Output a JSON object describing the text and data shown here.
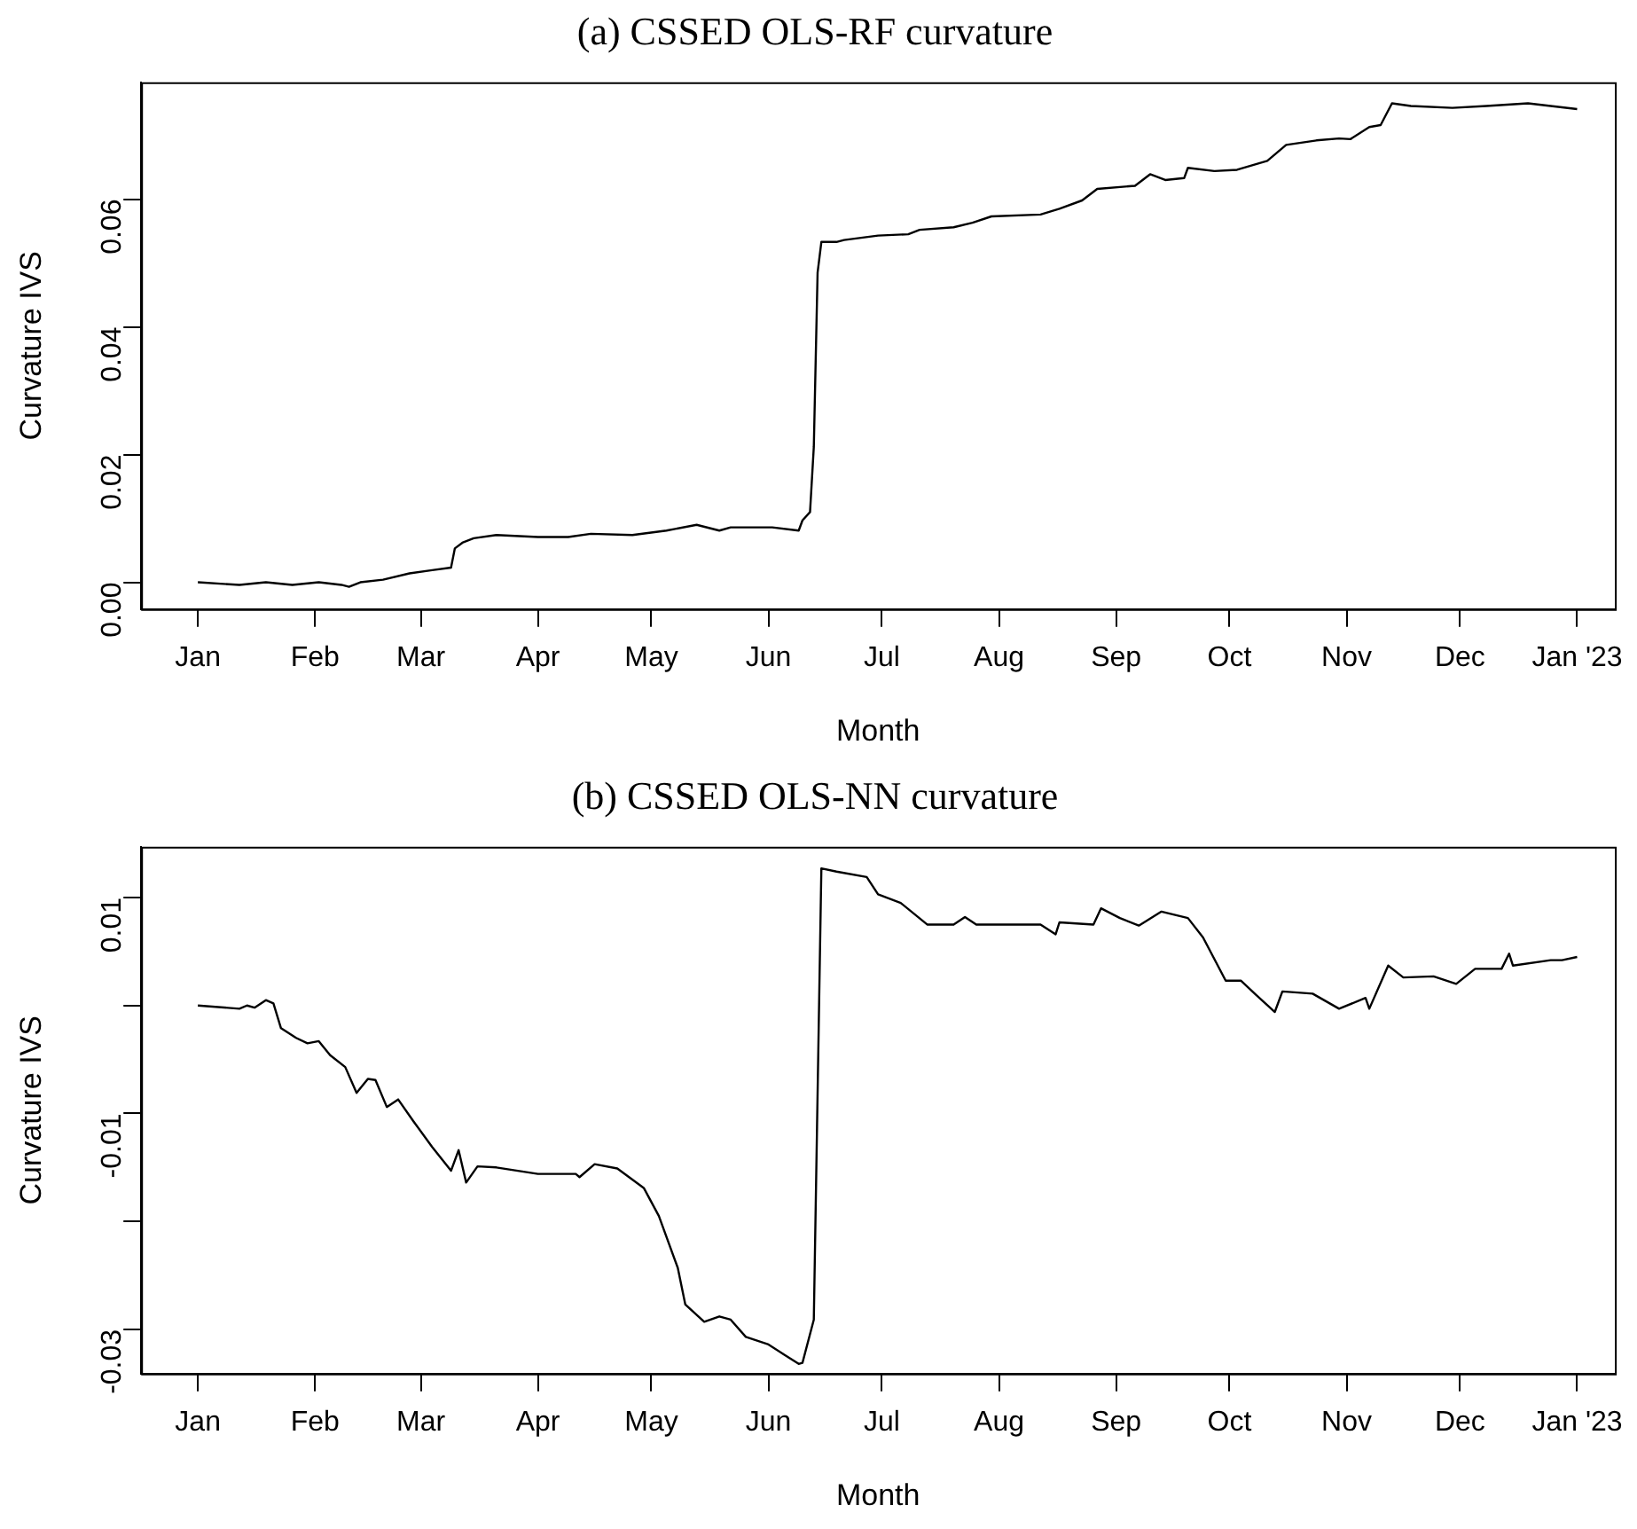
{
  "chart_data": [
    {
      "type": "line",
      "title": "(a) CSSED OLS-RF curvature",
      "xlabel": "Month",
      "ylabel": "Curvature IVS",
      "legend": false,
      "grid": false,
      "marker": "none",
      "line_style": "solid",
      "xlim": [
        "2021-12-17",
        "2023-01-11"
      ],
      "ylim": [
        -0.0042,
        0.0783
      ],
      "xticks": [
        {
          "value": "2022-01-01",
          "label": "Jan"
        },
        {
          "value": "2022-02-01",
          "label": "Feb"
        },
        {
          "value": "2022-03-01",
          "label": "Mar"
        },
        {
          "value": "2022-04-01",
          "label": "Apr"
        },
        {
          "value": "2022-05-01",
          "label": "May"
        },
        {
          "value": "2022-06-01",
          "label": "Jun"
        },
        {
          "value": "2022-07-01",
          "label": "Jul"
        },
        {
          "value": "2022-08-01",
          "label": "Aug"
        },
        {
          "value": "2022-09-01",
          "label": "Sep"
        },
        {
          "value": "2022-10-01",
          "label": "Oct"
        },
        {
          "value": "2022-11-01",
          "label": "Nov"
        },
        {
          "value": "2022-12-01",
          "label": "Dec"
        },
        {
          "value": "2023-01-01",
          "label": "Jan '23"
        }
      ],
      "yticks": [
        {
          "value": 0,
          "label": "0.00"
        },
        {
          "value": 0.02,
          "label": "0.02"
        },
        {
          "value": 0.04,
          "label": "0.04"
        },
        {
          "value": 0.06,
          "label": "0.06"
        }
      ],
      "x": [
        "2022-01-01",
        "2022-01-12",
        "2022-01-19",
        "2022-01-26",
        "2022-02-02",
        "2022-02-08",
        "2022-02-10",
        "2022-02-13",
        "2022-02-19",
        "2022-02-26",
        "2022-03-04",
        "2022-03-09",
        "2022-03-10",
        "2022-03-12",
        "2022-03-15",
        "2022-03-21",
        "2022-04-01",
        "2022-04-09",
        "2022-04-15",
        "2022-04-26",
        "2022-05-05",
        "2022-05-13",
        "2022-05-19",
        "2022-05-22",
        "2022-06-02",
        "2022-06-09",
        "2022-06-10",
        "2022-06-12",
        "2022-06-13",
        "2022-06-14",
        "2022-06-15",
        "2022-06-19",
        "2022-06-21",
        "2022-06-30",
        "2022-07-08",
        "2022-07-11",
        "2022-07-20",
        "2022-07-25",
        "2022-07-30",
        "2022-08-12",
        "2022-08-17",
        "2022-08-23",
        "2022-08-27",
        "2022-09-06",
        "2022-09-10",
        "2022-09-14",
        "2022-09-19",
        "2022-09-20",
        "2022-09-27",
        "2022-10-03",
        "2022-10-11",
        "2022-10-16",
        "2022-10-24",
        "2022-10-30",
        "2022-11-02",
        "2022-11-07",
        "2022-11-10",
        "2022-11-13",
        "2022-11-18",
        "2022-11-29",
        "2022-12-08",
        "2022-12-19",
        "2022-12-25",
        "2023-01-01"
      ],
      "series": [
        {
          "color": "#000000",
          "values": [
            0,
            -0.0004,
            0,
            -0.0004,
            0,
            -0.0004,
            -0.0007,
            0,
            0.0004,
            0.0014,
            0.0019,
            0.0023,
            0.0053,
            0.0062,
            0.0069,
            0.0074,
            0.0071,
            0.0071,
            0.0076,
            0.0074,
            0.0081,
            0.009,
            0.0081,
            0.0086,
            0.0086,
            0.0081,
            0.0097,
            0.011,
            0.0212,
            0.0485,
            0.0533,
            0.0533,
            0.0536,
            0.0543,
            0.0545,
            0.0552,
            0.0556,
            0.0563,
            0.0573,
            0.0576,
            0.0585,
            0.0598,
            0.0616,
            0.0621,
            0.0639,
            0.063,
            0.0633,
            0.0649,
            0.0644,
            0.0646,
            0.066,
            0.0685,
            0.0692,
            0.0695,
            0.0694,
            0.0713,
            0.0716,
            0.075,
            0.0746,
            0.0743,
            0.0746,
            0.075,
            0.0746,
            0.0741
          ]
        }
      ]
    },
    {
      "type": "line",
      "title": "(b) CSSED OLS-NN curvature",
      "xlabel": "Month",
      "ylabel": "Curvature IVS",
      "legend": false,
      "grid": false,
      "marker": "none",
      "line_style": "solid",
      "xlim": [
        "2021-12-17",
        "2023-01-11"
      ],
      "ylim": [
        -0.0341,
        0.0147
      ],
      "xticks": [
        {
          "value": "2022-01-01",
          "label": "Jan"
        },
        {
          "value": "2022-02-01",
          "label": "Feb"
        },
        {
          "value": "2022-03-01",
          "label": "Mar"
        },
        {
          "value": "2022-04-01",
          "label": "Apr"
        },
        {
          "value": "2022-05-01",
          "label": "May"
        },
        {
          "value": "2022-06-01",
          "label": "Jun"
        },
        {
          "value": "2022-07-01",
          "label": "Jul"
        },
        {
          "value": "2022-08-01",
          "label": "Aug"
        },
        {
          "value": "2022-09-01",
          "label": "Sep"
        },
        {
          "value": "2022-10-01",
          "label": "Oct"
        },
        {
          "value": "2022-11-01",
          "label": "Nov"
        },
        {
          "value": "2022-12-01",
          "label": "Dec"
        },
        {
          "value": "2023-01-01",
          "label": "Jan '23"
        }
      ],
      "yticks": [
        {
          "value": -0.03,
          "label": "-0.03"
        },
        {
          "value": -0.02,
          "label": null
        },
        {
          "value": -0.01,
          "label": "-0.01"
        },
        {
          "value": 0,
          "label": null
        },
        {
          "value": 0.01,
          "label": "0.01"
        }
      ],
      "x": [
        "2022-01-01",
        "2022-01-12",
        "2022-01-14",
        "2022-01-16",
        "2022-01-19",
        "2022-01-21",
        "2022-01-23",
        "2022-01-27",
        "2022-01-30",
        "2022-02-02",
        "2022-02-05",
        "2022-02-09",
        "2022-02-12",
        "2022-02-15",
        "2022-02-17",
        "2022-02-20",
        "2022-02-23",
        "2022-02-27",
        "2022-03-04",
        "2022-03-09",
        "2022-03-11",
        "2022-03-13",
        "2022-03-16",
        "2022-03-21",
        "2022-04-01",
        "2022-04-11",
        "2022-04-12",
        "2022-04-16",
        "2022-04-22",
        "2022-04-29",
        "2022-05-03",
        "2022-05-08",
        "2022-05-10",
        "2022-05-15",
        "2022-05-19",
        "2022-05-22",
        "2022-05-26",
        "2022-06-01",
        "2022-06-05",
        "2022-06-09",
        "2022-06-10",
        "2022-06-13",
        "2022-06-15",
        "2022-06-19",
        "2022-06-27",
        "2022-06-30",
        "2022-07-06",
        "2022-07-13",
        "2022-07-20",
        "2022-07-23",
        "2022-07-26",
        "2022-08-12",
        "2022-08-16",
        "2022-08-17",
        "2022-08-26",
        "2022-08-28",
        "2022-09-02",
        "2022-09-07",
        "2022-09-13",
        "2022-09-20",
        "2022-09-24",
        "2022-09-30",
        "2022-10-04",
        "2022-10-08",
        "2022-10-13",
        "2022-10-15",
        "2022-10-23",
        "2022-10-30",
        "2022-11-06",
        "2022-11-07",
        "2022-11-12",
        "2022-11-16",
        "2022-11-24",
        "2022-11-30",
        "2022-12-05",
        "2022-12-12",
        "2022-12-14",
        "2022-12-15",
        "2022-12-25",
        "2022-12-28",
        "2023-01-01"
      ],
      "series": [
        {
          "color": "#000000",
          "values": [
            0,
            -0.0003,
            0,
            -0.0002,
            0.0005,
            0.0002,
            -0.0021,
            -0.003,
            -0.0035,
            -0.0033,
            -0.0046,
            -0.0057,
            -0.0081,
            -0.0068,
            -0.0069,
            -0.0094,
            -0.0087,
            -0.0107,
            -0.0131,
            -0.0153,
            -0.0134,
            -0.0164,
            -0.0149,
            -0.015,
            -0.0156,
            -0.0156,
            -0.0159,
            -0.0147,
            -0.0151,
            -0.0169,
            -0.0195,
            -0.0243,
            -0.0277,
            -0.0293,
            -0.0288,
            -0.0291,
            -0.0307,
            -0.0314,
            -0.0323,
            -0.0332,
            -0.0331,
            -0.0291,
            0.0127,
            0.0124,
            0.0119,
            0.0103,
            0.0095,
            0.0075,
            0.0075,
            0.0082,
            0.0075,
            0.0075,
            0.0066,
            0.0077,
            0.0075,
            0.009,
            0.0081,
            0.0074,
            0.0087,
            0.0081,
            0.0063,
            0.0023,
            0.0023,
            0.001,
            -0.0006,
            0.0013,
            0.0011,
            -0.0003,
            0.0007,
            -0.0003,
            0.0037,
            0.0026,
            0.0027,
            0.002,
            0.0034,
            0.0034,
            0.0048,
            0.0037,
            0.0042,
            0.0042,
            0.0045
          ]
        }
      ]
    }
  ]
}
